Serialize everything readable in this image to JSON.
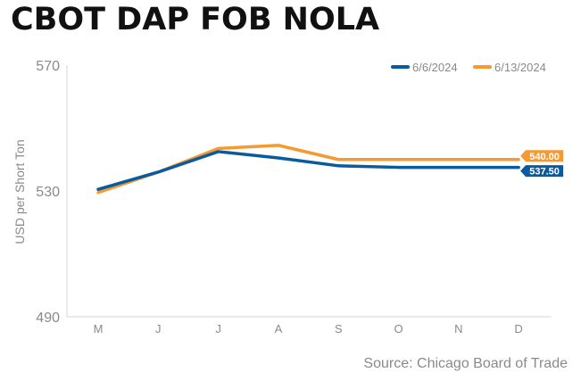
{
  "title": "CBOT DAP FOB NOLA",
  "source": "Source: Chicago Board of Trade",
  "chart_data": {
    "type": "line",
    "title": "CBOT DAP FOB NOLA",
    "xlabel": "",
    "ylabel": "USD per Short Ton",
    "categories": [
      "M",
      "J",
      "J",
      "A",
      "S",
      "O",
      "N",
      "D"
    ],
    "ylim": [
      490,
      570
    ],
    "yticks": [
      "570",
      "530",
      "490"
    ],
    "grid": false,
    "legend_position": "top-right",
    "series": [
      {
        "name": "6/6/2024",
        "color": "#0a5aa0",
        "values": [
          530.5,
          536,
          542.5,
          540.5,
          538,
          537.5,
          537.5,
          537.5
        ],
        "end_label": "537.50"
      },
      {
        "name": "6/13/2024",
        "color": "#f59a33",
        "values": [
          529.5,
          536,
          543.5,
          544.5,
          540,
          540,
          540,
          540
        ],
        "end_label": "540.00"
      }
    ]
  }
}
